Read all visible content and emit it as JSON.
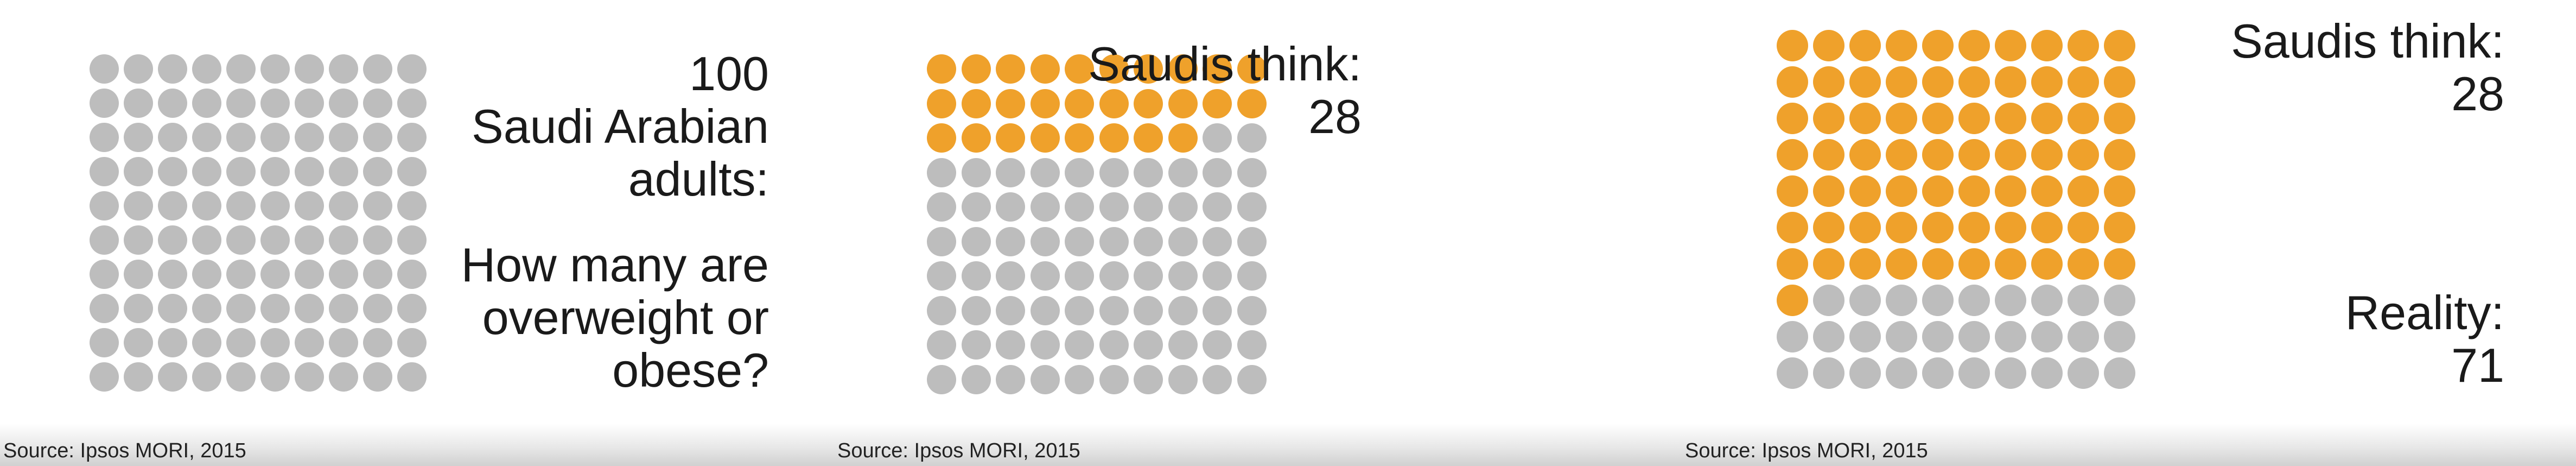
{
  "chart_data": [
    {
      "type": "waffle",
      "total": 100,
      "highlighted": 0,
      "text_lines": [
        "100",
        "Saudi Arabian",
        "adults:"
      ],
      "question_lines": [
        "How many are",
        "overweight or",
        "obese?"
      ],
      "source": "Source: Ipsos MORI, 2015"
    },
    {
      "type": "waffle",
      "total": 100,
      "highlighted": 28,
      "think_label": "Saudis think:",
      "think_value": "28",
      "source": "Source: Ipsos MORI, 2015"
    },
    {
      "type": "waffle",
      "total": 100,
      "highlighted": 71,
      "think_label": "Saudis think:",
      "think_value": "28",
      "reality_label": "Reality:",
      "reality_value": "71",
      "source": "Source: Ipsos MORI, 2015"
    }
  ],
  "colors": {
    "highlight": "#EFA12B",
    "base": "#BDBDBD"
  }
}
